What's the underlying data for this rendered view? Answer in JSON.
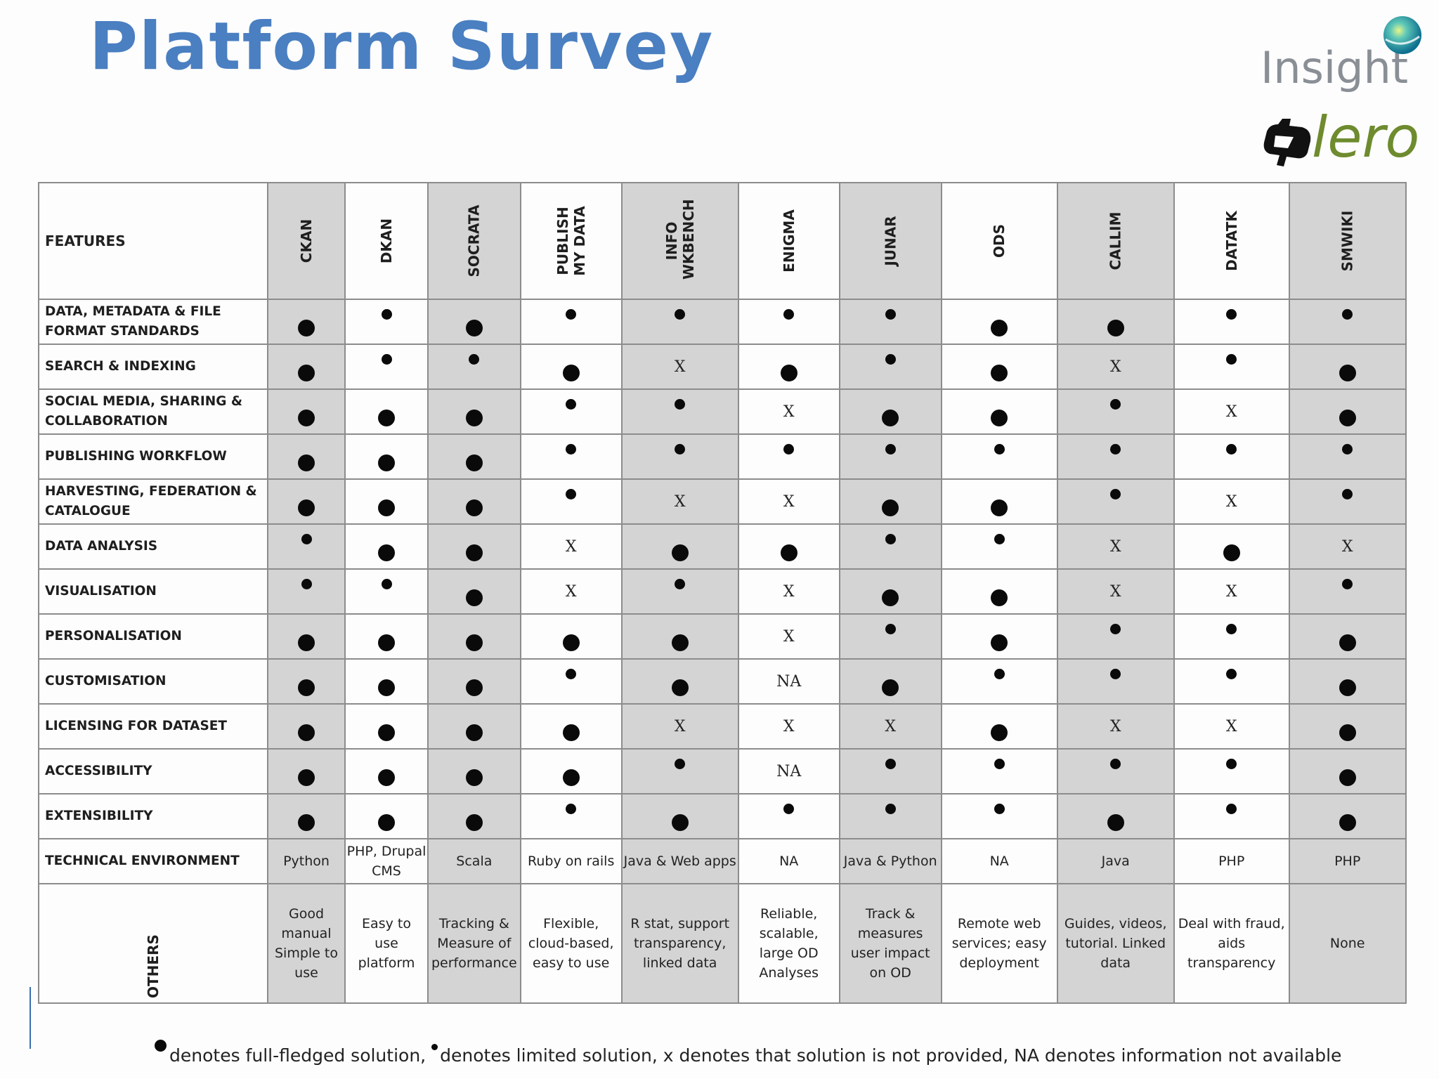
{
  "title": "Platform Survey",
  "logos": {
    "insight": "Insight",
    "lero": "lero",
    "colors": {
      "insight_text": "#8a8f96",
      "lero_text": "#6e8b2e",
      "title": "#4a7fc1"
    }
  },
  "table": {
    "features_header": "FEATURES",
    "platforms": [
      "CKAN",
      "DKAN",
      "SOCRATA",
      "PUBLISH MY DATA",
      "INFO WKBENCH",
      "ENIGMA",
      "JUNAR",
      "ODS",
      "CALLIM",
      "DATATK",
      "SMWIKI"
    ],
    "shaded_columns": [
      0,
      2,
      4,
      6,
      8,
      10
    ],
    "rows": [
      {
        "feature": "DATA, METADATA & FILE FORMAT STANDARDS",
        "values": [
          "full",
          "limited",
          "full",
          "limited",
          "limited",
          "limited",
          "limited",
          "full",
          "full",
          "limited",
          "limited"
        ]
      },
      {
        "feature": "SEARCH & INDEXING",
        "values": [
          "full",
          "limited",
          "limited",
          "full",
          "X",
          "full",
          "limited",
          "full",
          "X",
          "limited",
          "full"
        ]
      },
      {
        "feature": "SOCIAL MEDIA,  SHARING & COLLABORATION",
        "values": [
          "full",
          "full",
          "full",
          "limited",
          "limited",
          "X",
          "full",
          "full",
          "limited",
          "X",
          "full"
        ]
      },
      {
        "feature": "PUBLISHING WORKFLOW",
        "values": [
          "full",
          "full",
          "full",
          "limited",
          "limited",
          "limited",
          "limited",
          "limited",
          "limited",
          "limited",
          "limited"
        ]
      },
      {
        "feature": "HARVESTING, FEDERATION & CATALOGUE",
        "values": [
          "full",
          "full",
          "full",
          "limited",
          "X",
          "X",
          "full",
          "full",
          "limited",
          "X",
          "limited"
        ]
      },
      {
        "feature": "DATA ANALYSIS",
        "values": [
          "limited",
          "full",
          "full",
          "X",
          "full",
          "full",
          "limited",
          "limited",
          "X",
          "full",
          "X"
        ]
      },
      {
        "feature": "VISUALISATION",
        "values": [
          "limited",
          "limited",
          "full",
          "X",
          "limited",
          "X",
          "full",
          "full",
          "X",
          "X",
          "limited"
        ]
      },
      {
        "feature": "PERSONALISATION",
        "values": [
          "full",
          "full",
          "full",
          "full",
          "full",
          "X",
          "limited",
          "full",
          "limited",
          "limited",
          "full"
        ]
      },
      {
        "feature": "CUSTOMISATION",
        "values": [
          "full",
          "full",
          "full",
          "limited",
          "full",
          "NA",
          "full",
          "limited",
          "limited",
          "limited",
          "full"
        ]
      },
      {
        "feature": "LICENSING FOR DATASET",
        "values": [
          "full",
          "full",
          "full",
          "full",
          "X",
          "X",
          "X",
          "full",
          "X",
          "X",
          "full"
        ]
      },
      {
        "feature": "ACCESSIBILITY",
        "values": [
          "full",
          "full",
          "full",
          "full",
          "limited",
          "NA",
          "limited",
          "limited",
          "limited",
          "limited",
          "full"
        ]
      },
      {
        "feature": "EXTENSIBILITY",
        "values": [
          "full",
          "full",
          "full",
          "limited",
          "full",
          "limited",
          "limited",
          "limited",
          "full",
          "limited",
          "full"
        ]
      }
    ],
    "technical_environment": {
      "label": "TECHNICAL ENVIRONMENT",
      "values": [
        "Python",
        "PHP, Drupal CMS",
        "Scala",
        "Ruby on rails",
        "Java & Web apps",
        "NA",
        "Java & Python",
        "NA",
        "Java",
        "PHP",
        "PHP"
      ]
    },
    "others": {
      "label": "OTHERS",
      "values": [
        "Good manual Simple to use",
        "Easy to use platform",
        "Tracking & Measure of performance",
        "Flexible, cloud-based, easy to use",
        "R stat, support transparency, linked data",
        "Reliable, scalable, large OD Analyses",
        "Track & measures user impact on OD",
        "Remote web services; easy deployment",
        "Guides, videos, tutorial. Linked data",
        "Deal with fraud, aids transparency",
        "None"
      ]
    }
  },
  "legend": {
    "full": "denotes full-fledged solution,",
    "limited": "denotes limited solution, x denotes that solution is not provided, NA denotes information not available"
  }
}
